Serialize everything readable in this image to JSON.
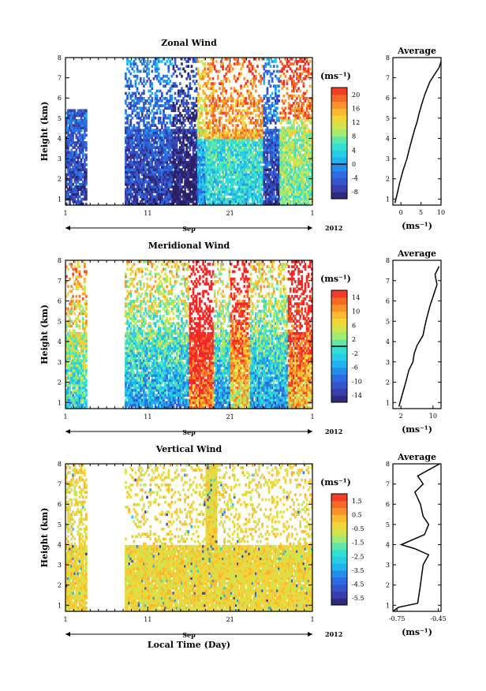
{
  "chart_data": [
    {
      "type": "heatmap",
      "title": "Zonal Wind",
      "ylabel": "Height (km)",
      "xlabel": "",
      "xaxis_date_label": "Sep",
      "xaxis_year_label": "2012",
      "x_ticks": [
        "1",
        "11",
        "21",
        "1"
      ],
      "y_ticks": [
        "1",
        "2",
        "3",
        "4",
        "5",
        "6",
        "7",
        "8"
      ],
      "xlim_days": [
        1,
        31
      ],
      "ylim_km": [
        0.7,
        8.0
      ],
      "colorbar": {
        "unit": "(ms⁻¹)",
        "labels": [
          "20",
          "16",
          "12",
          "8",
          "4",
          "0",
          "-4",
          "-8"
        ],
        "range": [
          -10,
          22
        ],
        "zero_line": 0
      },
      "data_gaps_days": [
        [
          3.5,
          8.4
        ]
      ],
      "average": {
        "title": "Average",
        "xlabel": "(ms⁻¹)",
        "x_ticks": [
          "0",
          "5",
          "10"
        ],
        "xlim": [
          -2,
          10
        ],
        "y_ticks": [
          "1",
          "2",
          "3",
          "4",
          "5",
          "6",
          "7",
          "8"
        ],
        "profile": [
          [
            -1.5,
            0.8
          ],
          [
            -1.0,
            1.2
          ],
          [
            -0.3,
            1.8
          ],
          [
            0.5,
            2.4
          ],
          [
            1.5,
            3.0
          ],
          [
            2.0,
            3.4
          ],
          [
            2.8,
            4.0
          ],
          [
            3.5,
            4.5
          ],
          [
            4.0,
            4.8
          ],
          [
            4.5,
            5.2
          ],
          [
            5.2,
            5.7
          ],
          [
            6.0,
            6.2
          ],
          [
            7.2,
            6.8
          ],
          [
            8.5,
            7.2
          ],
          [
            9.5,
            7.5
          ],
          [
            10.0,
            7.8
          ]
        ]
      }
    },
    {
      "type": "heatmap",
      "title": "Meridional Wind",
      "ylabel": "Height (km)",
      "xlabel": "",
      "xaxis_date_label": "Sep",
      "xaxis_year_label": "2012",
      "x_ticks": [
        "1",
        "11",
        "21",
        "1"
      ],
      "y_ticks": [
        "1",
        "2",
        "3",
        "4",
        "5",
        "6",
        "7",
        "8"
      ],
      "xlim_days": [
        1,
        31
      ],
      "ylim_km": [
        0.7,
        8.0
      ],
      "colorbar": {
        "unit": "(ms⁻¹)",
        "labels": [
          "14",
          "10",
          "6",
          "2",
          "-2",
          "-6",
          "-10",
          "-14"
        ],
        "range": [
          -16,
          16
        ],
        "zero_line": 0
      },
      "data_gaps_days": [
        [
          3.5,
          8.4
        ]
      ],
      "average": {
        "title": "Average",
        "xlabel": "(ms⁻¹)",
        "x_ticks": [
          "2",
          "10"
        ],
        "xlim": [
          0,
          12
        ],
        "y_ticks": [
          "1",
          "2",
          "3",
          "4",
          "5",
          "6",
          "7",
          "8"
        ],
        "profile": [
          [
            1.5,
            0.8
          ],
          [
            2.2,
            1.3
          ],
          [
            3.2,
            2.0
          ],
          [
            4.0,
            2.6
          ],
          [
            5.0,
            3.0
          ],
          [
            5.3,
            3.4
          ],
          [
            6.0,
            3.8
          ],
          [
            7.5,
            4.3
          ],
          [
            8.0,
            4.8
          ],
          [
            8.5,
            5.2
          ],
          [
            9.3,
            5.8
          ],
          [
            10.0,
            6.2
          ],
          [
            11.0,
            6.8
          ],
          [
            10.5,
            7.3
          ],
          [
            11.5,
            7.7
          ]
        ]
      }
    },
    {
      "type": "heatmap",
      "title": "Vertical Wind",
      "ylabel": "Height (km)",
      "xlabel": "Local Time (Day)",
      "xaxis_date_label": "Sep",
      "xaxis_year_label": "2012",
      "x_ticks": [
        "1",
        "11",
        "21",
        "1"
      ],
      "y_ticks": [
        "1",
        "2",
        "3",
        "4",
        "5",
        "6",
        "7",
        "8"
      ],
      "xlim_days": [
        1,
        31
      ],
      "ylim_km": [
        0.7,
        8.0
      ],
      "colorbar": {
        "unit": "(ms⁻¹)",
        "labels": [
          "1.5",
          "0.5",
          "-0.5",
          "-1.5",
          "-2.5",
          "-3.5",
          "-4.5",
          "-5.5"
        ],
        "range": [
          -6,
          2
        ]
      },
      "data_gaps_days": [
        [
          3.5,
          8.4
        ]
      ],
      "average": {
        "title": "Average",
        "xlabel": "(ms⁻¹)",
        "x_ticks": [
          "-0.75",
          "-0.45"
        ],
        "xlim": [
          -0.78,
          -0.43
        ],
        "y_ticks": [
          "1",
          "2",
          "3",
          "4",
          "5",
          "6",
          "7",
          "8"
        ],
        "profile": [
          [
            -0.78,
            0.7
          ],
          [
            -0.74,
            0.9
          ],
          [
            -0.6,
            1.1
          ],
          [
            -0.58,
            2.0
          ],
          [
            -0.56,
            3.0
          ],
          [
            -0.52,
            3.5
          ],
          [
            -0.62,
            3.8
          ],
          [
            -0.72,
            4.0
          ],
          [
            -0.55,
            4.5
          ],
          [
            -0.52,
            5.0
          ],
          [
            -0.56,
            5.4
          ],
          [
            -0.58,
            6.0
          ],
          [
            -0.62,
            6.6
          ],
          [
            -0.56,
            7.0
          ],
          [
            -0.6,
            7.4
          ],
          [
            -0.52,
            7.7
          ],
          [
            -0.44,
            8.0
          ]
        ]
      }
    }
  ]
}
